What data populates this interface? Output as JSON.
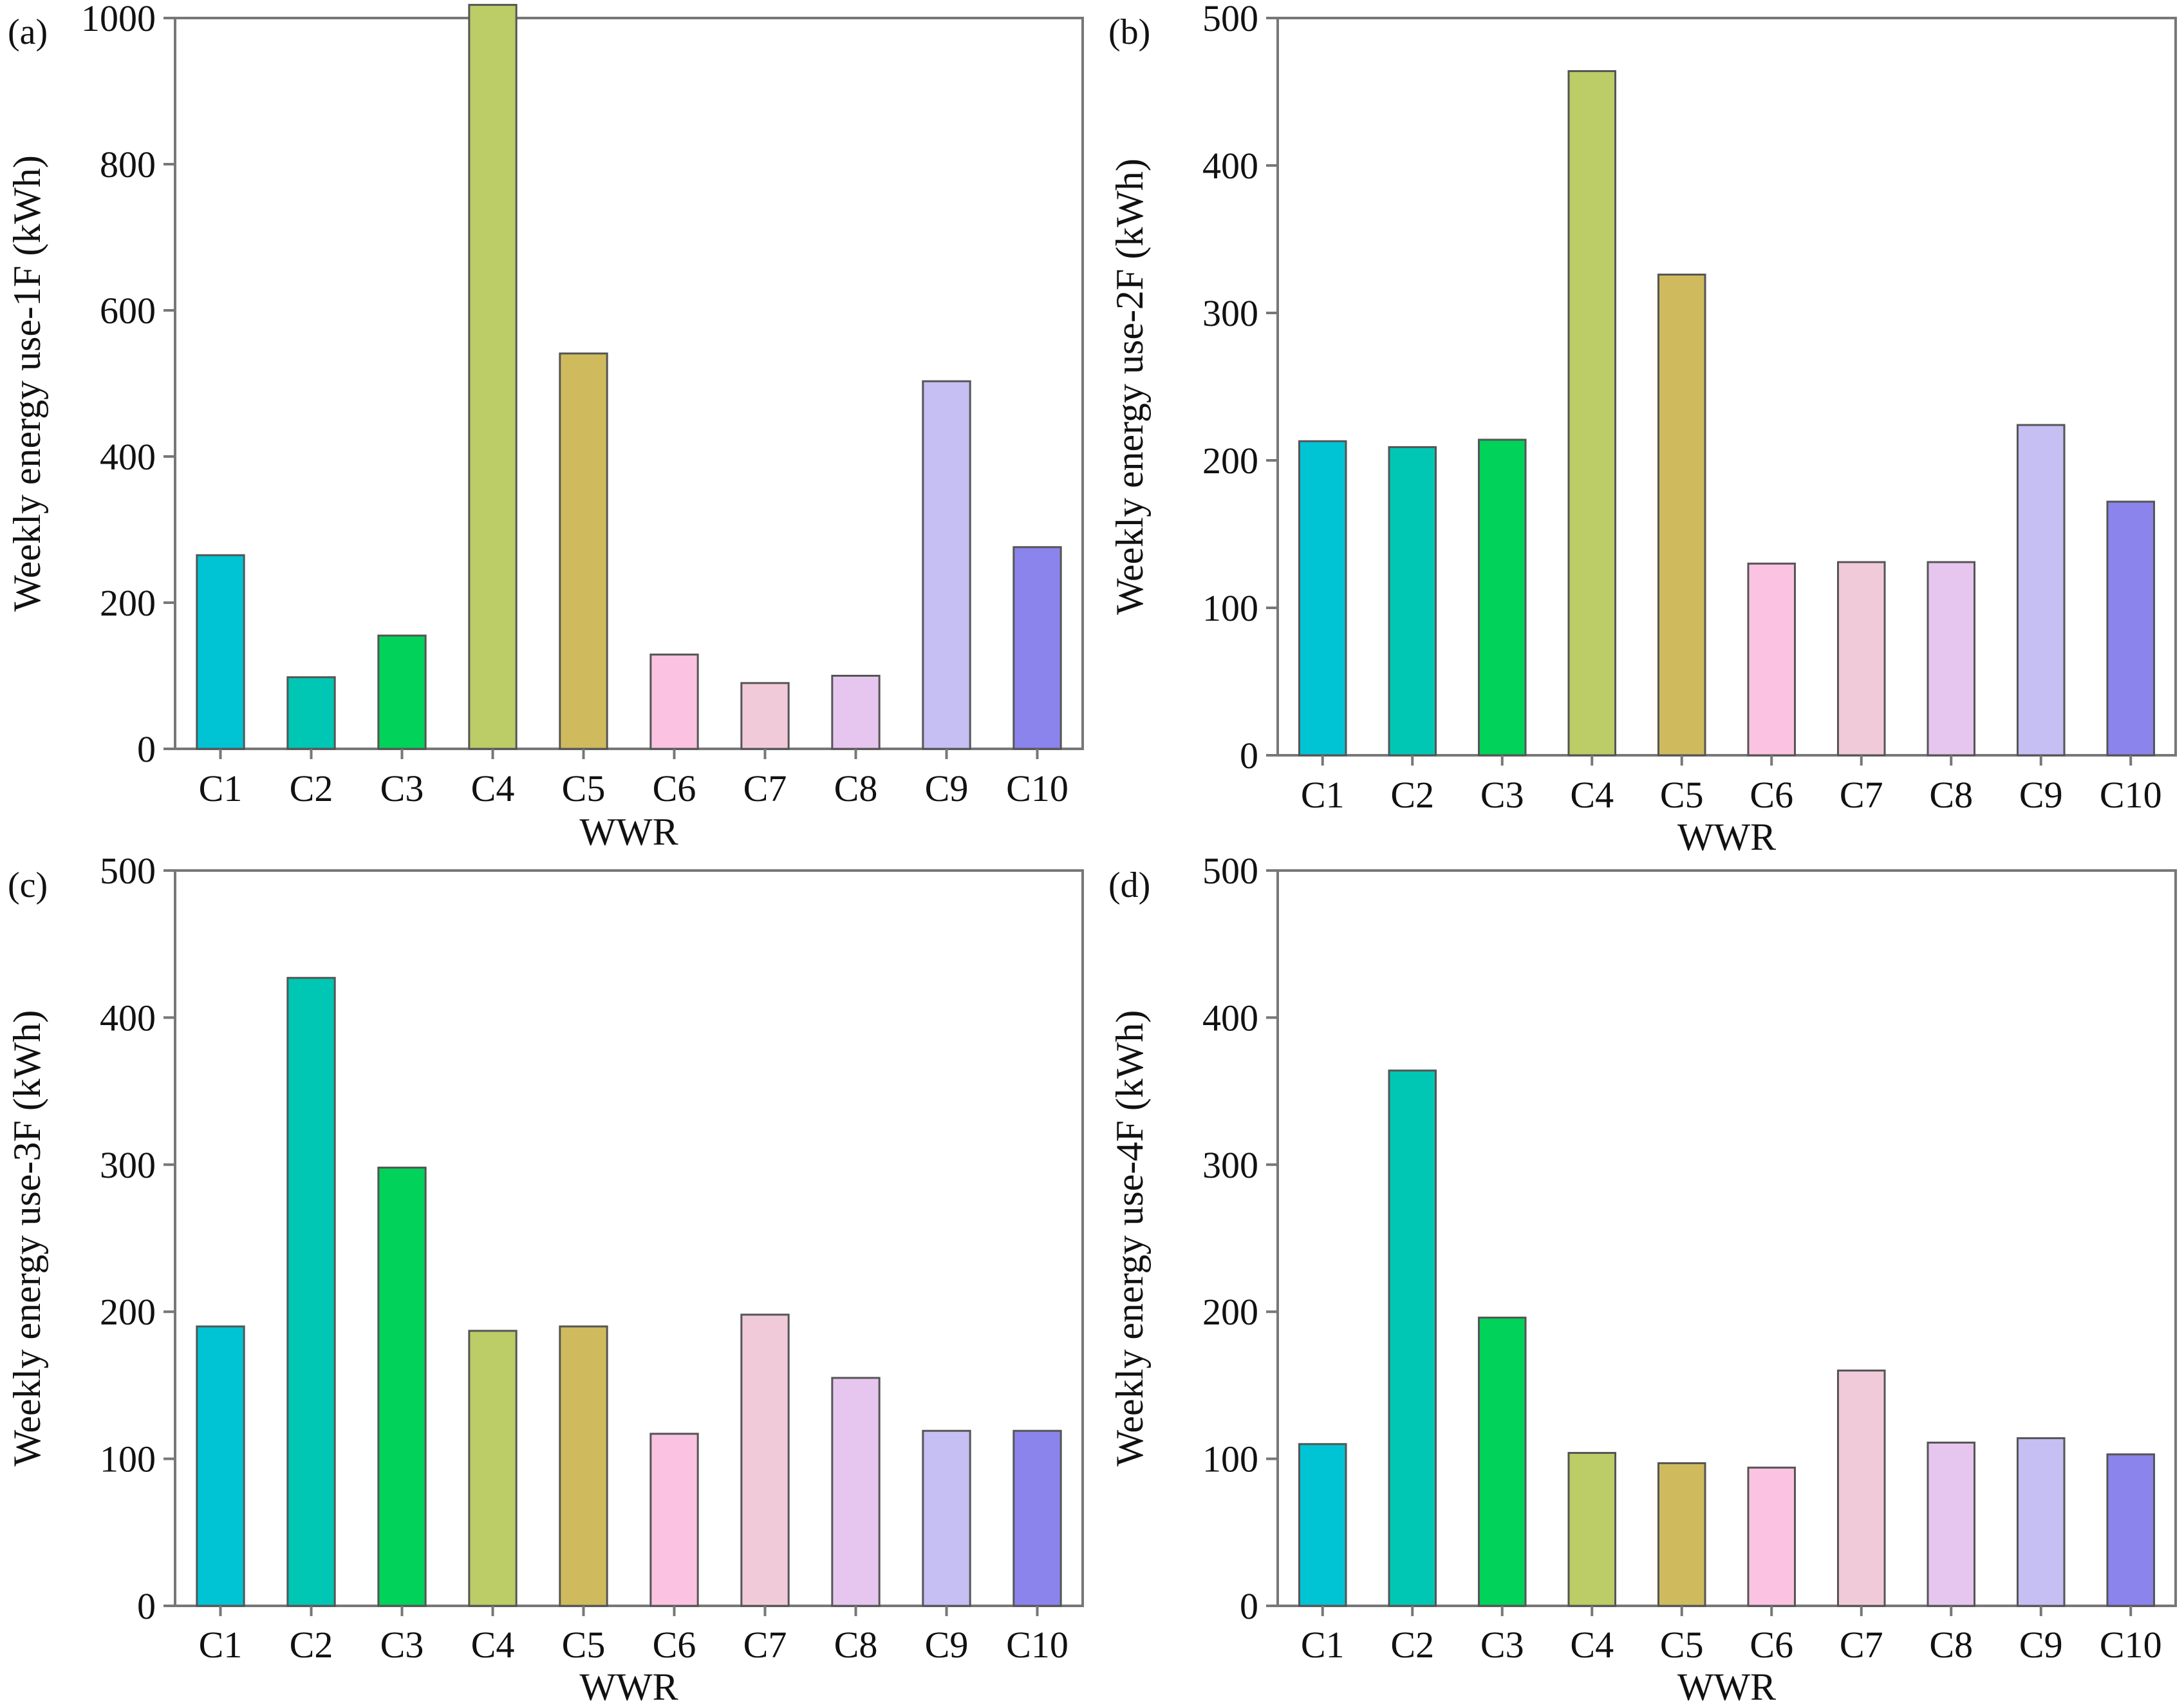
{
  "chart_data": [
    {
      "type": "bar",
      "panel": "(a)",
      "title": "",
      "xlabel": "WWR",
      "ylabel": "Weekly energy use-1F (kWh)",
      "categories": [
        "C1",
        "C2",
        "C3",
        "C4",
        "C5",
        "C6",
        "C7",
        "C8",
        "C9",
        "C10"
      ],
      "values": [
        265,
        98,
        155,
        1018,
        541,
        129,
        90,
        100,
        503,
        276
      ],
      "ylim": [
        0,
        1000
      ],
      "yticks": [
        0,
        200,
        400,
        600,
        800,
        1000
      ],
      "grid": false,
      "legend": "none"
    },
    {
      "type": "bar",
      "panel": "(b)",
      "title": "",
      "xlabel": "WWR",
      "ylabel": "Weekly energy use-2F (kWh)",
      "categories": [
        "C1",
        "C2",
        "C3",
        "C4",
        "C5",
        "C6",
        "C7",
        "C8",
        "C9",
        "C10"
      ],
      "values": [
        213,
        209,
        214,
        464,
        326,
        130,
        131,
        131,
        224,
        172
      ],
      "ylim": [
        0,
        500
      ],
      "yticks": [
        0,
        100,
        200,
        300,
        400,
        500
      ],
      "grid": false,
      "legend": "none"
    },
    {
      "type": "bar",
      "panel": "(c)",
      "title": "",
      "xlabel": "WWR",
      "ylabel": "Weekly energy use-3F (kWh)",
      "categories": [
        "C1",
        "C2",
        "C3",
        "C4",
        "C5",
        "C6",
        "C7",
        "C8",
        "C9",
        "C10"
      ],
      "values": [
        190,
        427,
        298,
        187,
        190,
        117,
        198,
        155,
        119,
        119
      ],
      "ylim": [
        0,
        500
      ],
      "yticks": [
        0,
        100,
        200,
        300,
        400,
        500
      ],
      "grid": false,
      "legend": "none"
    },
    {
      "type": "bar",
      "panel": "(d)",
      "title": "",
      "xlabel": "WWR",
      "ylabel": "Weekly energy use-4F (kWh)",
      "categories": [
        "C1",
        "C2",
        "C3",
        "C4",
        "C5",
        "C6",
        "C7",
        "C8",
        "C9",
        "C10"
      ],
      "values": [
        110,
        364,
        196,
        104,
        97,
        94,
        160,
        111,
        114,
        103
      ],
      "ylim": [
        0,
        500
      ],
      "yticks": [
        0,
        100,
        200,
        300,
        400,
        500
      ],
      "grid": false,
      "legend": "none"
    }
  ],
  "colors": {
    "bars": [
      "#00c4d4",
      "#00c7b4",
      "#00d25a",
      "#bccc66",
      "#cfbb5e",
      "#fbc2e2",
      "#f1cada",
      "#e6c6ee",
      "#c5bff4",
      "#8b84ec"
    ],
    "bar_outline": "#555555",
    "axis": "#777777"
  }
}
